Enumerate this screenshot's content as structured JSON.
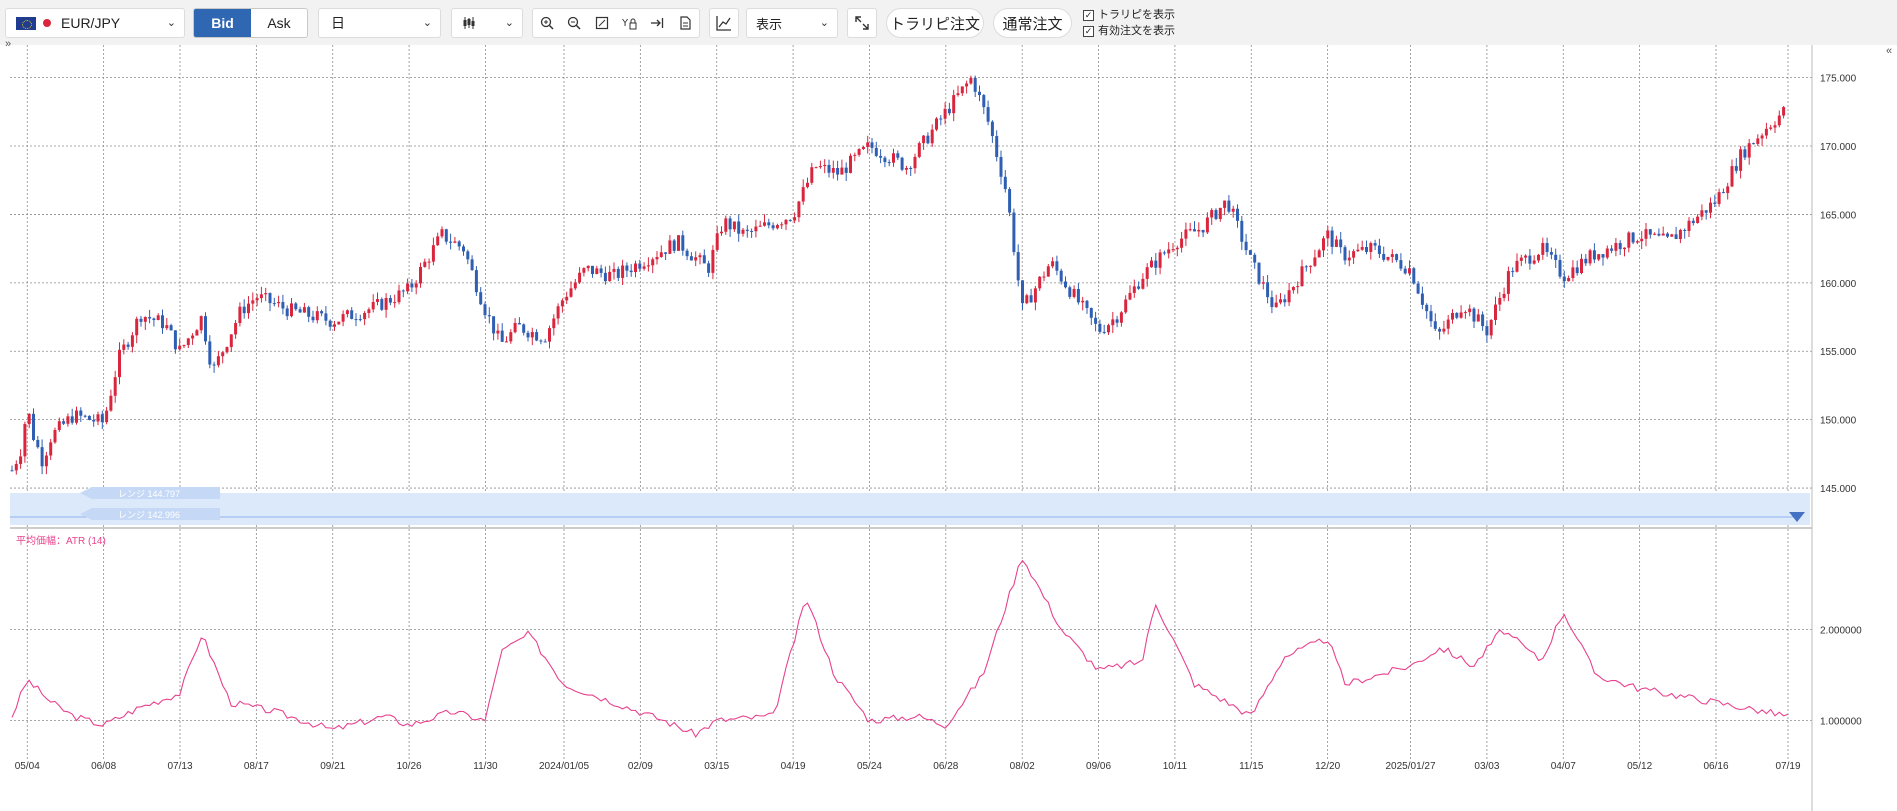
{
  "toolbar": {
    "symbol": "EUR/JPY",
    "bid_label": "Bid",
    "ask_label": "Ask",
    "period": "日",
    "display_label": "表示",
    "trapi_order_label": "トラリピ注文",
    "normal_order_label": "通常注文",
    "show_trapi_label": "トラリピを表示",
    "show_active_orders_label": "有効注文を表示",
    "show_trapi_checked": true,
    "show_active_orders_checked": true
  },
  "colors": {
    "up_candle": "#d9263e",
    "down_candle": "#2f5fb3",
    "atr_line": "#e8428e",
    "range_band": "#dce9fb",
    "accent": "#2f67b3"
  },
  "range_labels": [
    "レンジ 144.797",
    "レンジ 142.996"
  ],
  "chart_data": [
    {
      "type": "candlestick",
      "series_name": "EUR/JPY",
      "y_ticks": [
        "175.000",
        "170.000",
        "165.000",
        "160.000",
        "155.000",
        "150.000",
        "145.000"
      ],
      "ylim": [
        142.3,
        176.8
      ],
      "x_ticks": [
        "05/04",
        "06/08",
        "07/13",
        "08/17",
        "09/21",
        "10/26",
        "11/30",
        "2024/01/05",
        "02/09",
        "03/15",
        "04/19",
        "05/24",
        "06/28",
        "08/02",
        "09/06",
        "10/11",
        "11/15",
        "12/20",
        "2025/01/27",
        "03/03",
        "04/07",
        "05/12",
        "06/16",
        "07/19"
      ],
      "close_path": [
        {
          "x": "04/27",
          "y": 146.3
        },
        {
          "x": "05/01",
          "y": 147.8
        },
        {
          "x": "05/04",
          "y": 150.9
        },
        {
          "x": "05/07",
          "y": 148.7
        },
        {
          "x": "05/11",
          "y": 147.0
        },
        {
          "x": "05/15",
          "y": 148.8
        },
        {
          "x": "05/25",
          "y": 150.3
        },
        {
          "x": "06/08",
          "y": 149.8
        },
        {
          "x": "06/15",
          "y": 154.5
        },
        {
          "x": "06/25",
          "y": 157.7
        },
        {
          "x": "07/06",
          "y": 157.0
        },
        {
          "x": "07/13",
          "y": 155.0
        },
        {
          "x": "07/23",
          "y": 157.5
        },
        {
          "x": "07/28",
          "y": 153.5
        },
        {
          "x": "08/10",
          "y": 158.0
        },
        {
          "x": "08/17",
          "y": 159.0
        },
        {
          "x": "09/01",
          "y": 158.0
        },
        {
          "x": "09/21",
          "y": 157.2
        },
        {
          "x": "10/10",
          "y": 158.2
        },
        {
          "x": "10/26",
          "y": 159.5
        },
        {
          "x": "11/10",
          "y": 163.5
        },
        {
          "x": "11/20",
          "y": 162.5
        },
        {
          "x": "11/30",
          "y": 158.0
        },
        {
          "x": "12/07",
          "y": 155.5
        },
        {
          "x": "12/15",
          "y": 156.8
        },
        {
          "x": "12/27",
          "y": 156.0
        },
        {
          "x": "2024/01/05",
          "y": 159.0
        },
        {
          "x": "01/15",
          "y": 161.0
        },
        {
          "x": "01/28",
          "y": 160.5
        },
        {
          "x": "02/09",
          "y": 161.5
        },
        {
          "x": "02/26",
          "y": 163.0
        },
        {
          "x": "03/11",
          "y": 161.0
        },
        {
          "x": "03/18",
          "y": 164.5
        },
        {
          "x": "03/28",
          "y": 163.5
        },
        {
          "x": "04/19",
          "y": 165.0
        },
        {
          "x": "04/29",
          "y": 168.5
        },
        {
          "x": "05/10",
          "y": 168.0
        },
        {
          "x": "05/24",
          "y": 170.0
        },
        {
          "x": "06/10",
          "y": 168.5
        },
        {
          "x": "06/28",
          "y": 172.5
        },
        {
          "x": "07/10",
          "y": 175.0
        },
        {
          "x": "07/18",
          "y": 171.5
        },
        {
          "x": "07/26",
          "y": 166.5
        },
        {
          "x": "08/02",
          "y": 158.0
        },
        {
          "x": "08/15",
          "y": 161.5
        },
        {
          "x": "09/06",
          "y": 156.5
        },
        {
          "x": "09/14",
          "y": 157.5
        },
        {
          "x": "09/26",
          "y": 160.5
        },
        {
          "x": "10/11",
          "y": 163.0
        },
        {
          "x": "10/23",
          "y": 164.0
        },
        {
          "x": "11/04",
          "y": 166.0
        },
        {
          "x": "11/15",
          "y": 161.5
        },
        {
          "x": "11/26",
          "y": 158.0
        },
        {
          "x": "12/05",
          "y": 160.0
        },
        {
          "x": "12/20",
          "y": 163.5
        },
        {
          "x": "12/27",
          "y": 162.0
        },
        {
          "x": "2025/01/10",
          "y": 162.5
        },
        {
          "x": "2025/01/27",
          "y": 161.0
        },
        {
          "x": "02/08",
          "y": 156.0
        },
        {
          "x": "02/20",
          "y": 158.5
        },
        {
          "x": "03/03",
          "y": 156.5
        },
        {
          "x": "03/14",
          "y": 161.0
        },
        {
          "x": "03/28",
          "y": 162.5
        },
        {
          "x": "04/07",
          "y": 160.5
        },
        {
          "x": "04/20",
          "y": 162.0
        },
        {
          "x": "05/12",
          "y": 163.5
        },
        {
          "x": "05/25",
          "y": 163.0
        },
        {
          "x": "06/16",
          "y": 166.0
        },
        {
          "x": "06/28",
          "y": 169.5
        },
        {
          "x": "07/10",
          "y": 171.5
        },
        {
          "x": "07/19",
          "y": 172.8
        }
      ]
    },
    {
      "type": "line",
      "title": "平均価幅：ATR (14)",
      "y_ticks": [
        "1.000000",
        "2.000000"
      ],
      "ylim": [
        0.7,
        3.1
      ],
      "values_path": [
        {
          "x": "04/27",
          "y": 1.05
        },
        {
          "x": "05/04",
          "y": 1.45
        },
        {
          "x": "05/15",
          "y": 1.2
        },
        {
          "x": "05/25",
          "y": 1.05
        },
        {
          "x": "06/08",
          "y": 0.95
        },
        {
          "x": "06/25",
          "y": 1.15
        },
        {
          "x": "07/13",
          "y": 1.3
        },
        {
          "x": "07/23",
          "y": 1.95
        },
        {
          "x": "08/05",
          "y": 1.2
        },
        {
          "x": "08/25",
          "y": 1.1
        },
        {
          "x": "09/21",
          "y": 0.9
        },
        {
          "x": "10/15",
          "y": 1.05
        },
        {
          "x": "10/26",
          "y": 0.95
        },
        {
          "x": "11/15",
          "y": 1.1
        },
        {
          "x": "11/30",
          "y": 1.0
        },
        {
          "x": "12/07",
          "y": 1.75
        },
        {
          "x": "12/20",
          "y": 1.95
        },
        {
          "x": "2024/01/05",
          "y": 1.4
        },
        {
          "x": "01/28",
          "y": 1.2
        },
        {
          "x": "02/20",
          "y": 1.0
        },
        {
          "x": "03/05",
          "y": 0.85
        },
        {
          "x": "03/15",
          "y": 1.0
        },
        {
          "x": "04/10",
          "y": 1.05
        },
        {
          "x": "04/25",
          "y": 2.35
        },
        {
          "x": "05/08",
          "y": 1.5
        },
        {
          "x": "05/24",
          "y": 1.0
        },
        {
          "x": "06/15",
          "y": 1.05
        },
        {
          "x": "06/28",
          "y": 0.95
        },
        {
          "x": "07/15",
          "y": 1.5
        },
        {
          "x": "08/02",
          "y": 2.8
        },
        {
          "x": "08/20",
          "y": 2.0
        },
        {
          "x": "09/06",
          "y": 1.55
        },
        {
          "x": "09/26",
          "y": 1.65
        },
        {
          "x": "10/02",
          "y": 2.3
        },
        {
          "x": "10/20",
          "y": 1.4
        },
        {
          "x": "11/04",
          "y": 1.2
        },
        {
          "x": "11/15",
          "y": 1.05
        },
        {
          "x": "11/30",
          "y": 1.7
        },
        {
          "x": "12/20",
          "y": 1.9
        },
        {
          "x": "12/28",
          "y": 1.4
        },
        {
          "x": "2025/01/27",
          "y": 1.6
        },
        {
          "x": "02/10",
          "y": 1.8
        },
        {
          "x": "02/25",
          "y": 1.6
        },
        {
          "x": "03/10",
          "y": 2.0
        },
        {
          "x": "03/28",
          "y": 1.65
        },
        {
          "x": "04/07",
          "y": 2.2
        },
        {
          "x": "04/22",
          "y": 1.5
        },
        {
          "x": "05/12",
          "y": 1.35
        },
        {
          "x": "06/16",
          "y": 1.2
        },
        {
          "x": "07/19",
          "y": 1.05
        }
      ]
    }
  ]
}
